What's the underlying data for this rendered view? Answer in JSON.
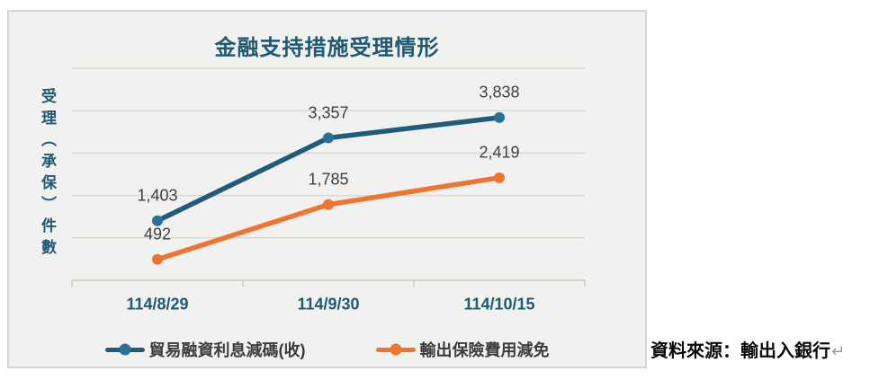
{
  "card": {
    "background": "#f1f1ef",
    "border_color": "#d6d6d3"
  },
  "chart_data": {
    "type": "line",
    "title": "金融支持措施受理情形",
    "ylabel": "受理（承保）件數",
    "xlabel": "",
    "categories": [
      "114/8/29",
      "114/9/30",
      "114/10/15"
    ],
    "series": [
      {
        "name": "貿易融資利息減碼(收)",
        "color": "#1f5c7b",
        "marker_color": "#2a6f96",
        "values": [
          1403,
          3357,
          3838
        ],
        "labels": [
          "1,403",
          "3,357",
          "3,838"
        ]
      },
      {
        "name": "輸出保險費用減免",
        "color": "#ed7532",
        "marker_color": "#ed7532",
        "values": [
          492,
          1785,
          2419
        ],
        "labels": [
          "492",
          "1,785",
          "2,419"
        ]
      }
    ],
    "ylim": [
      0,
      5000
    ],
    "grid_interval": 1000,
    "grid": true,
    "legend_position": "bottom",
    "colors": {
      "gridline": "#d9d9d6",
      "axis": "#c9c9c6",
      "data_label": "#404040",
      "axis_text": "#1e5a72",
      "legend_text": "#3c3c3c"
    }
  },
  "source_note": {
    "text": "資料來源：輸出入銀行",
    "mark": "↵"
  }
}
